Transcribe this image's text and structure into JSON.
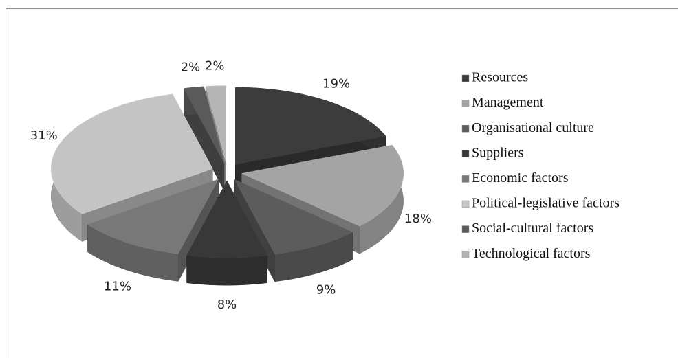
{
  "chart_data": {
    "type": "pie",
    "categories": [
      "Resources",
      "Management",
      "Organisational culture",
      "Suppliers",
      "Economic factors",
      "Political-legislative factors",
      "Social-cultural factors",
      "Technological factors"
    ],
    "values": [
      19,
      18,
      9,
      8,
      11,
      31,
      2,
      2
    ],
    "value_labels": [
      "19%",
      "18%",
      "9%",
      "8%",
      "11%",
      "31%",
      "2%",
      "2%"
    ],
    "colors": [
      "#3c3c3c",
      "#a4a4a4",
      "#5c5c5c",
      "#383838",
      "#787878",
      "#c4c4c4",
      "#5a5a5a",
      "#b4b4b4"
    ],
    "legend": "right"
  }
}
